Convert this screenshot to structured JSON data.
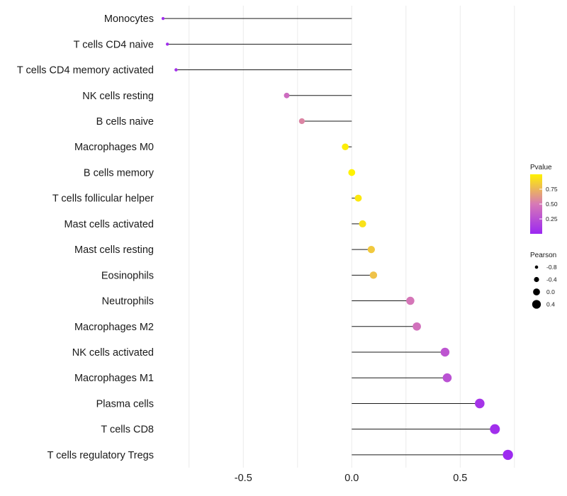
{
  "chart_data": {
    "type": "lollipop",
    "title": "",
    "xlabel": "",
    "ylabel": "",
    "xlim": [
      -0.88,
      0.78
    ],
    "x_ticks": [
      -0.5,
      0.0,
      0.5
    ],
    "x_tick_labels": [
      "-0.5",
      "0.0",
      "0.5"
    ],
    "grid": true,
    "categories": [
      "Monocytes",
      "T cells CD4 naive",
      "T cells CD4 memory activated",
      "NK cells resting",
      "B cells naive",
      "Macrophages M0",
      "B cells memory",
      "T cells follicular helper",
      "Mast cells activated",
      "Mast cells resting",
      "Eosinophils",
      "Neutrophils",
      "Macrophages M2",
      "NK cells activated",
      "Macrophages M1",
      "Plasma cells",
      "T cells CD8",
      "T cells regulatory  Tregs"
    ],
    "pearson": [
      -0.87,
      -0.85,
      -0.81,
      -0.3,
      -0.23,
      -0.03,
      0.0,
      0.03,
      0.05,
      0.09,
      0.1,
      0.27,
      0.3,
      0.43,
      0.44,
      0.59,
      0.66,
      0.72
    ],
    "pvalue": [
      0.03,
      0.04,
      0.07,
      0.42,
      0.55,
      0.98,
      1.0,
      0.96,
      0.93,
      0.83,
      0.8,
      0.48,
      0.45,
      0.28,
      0.26,
      0.08,
      0.05,
      0.02
    ],
    "legend_position": "right",
    "pvalue_legend": {
      "title": "Pvalue",
      "breaks": [
        0.75,
        0.5,
        0.25
      ],
      "labels": [
        "0.75",
        "0.50",
        "0.25"
      ],
      "range": [
        0.0,
        1.0
      ],
      "low_color": "#9b27f2",
      "mid_color": "#d779b6",
      "high_color": "#fff200"
    },
    "pearson_legend": {
      "title": "Pearson",
      "breaks": [
        -0.8,
        -0.4,
        0.0,
        0.4
      ],
      "labels": [
        "-0.8",
        "-0.4",
        "0.0",
        "0.4"
      ]
    }
  }
}
